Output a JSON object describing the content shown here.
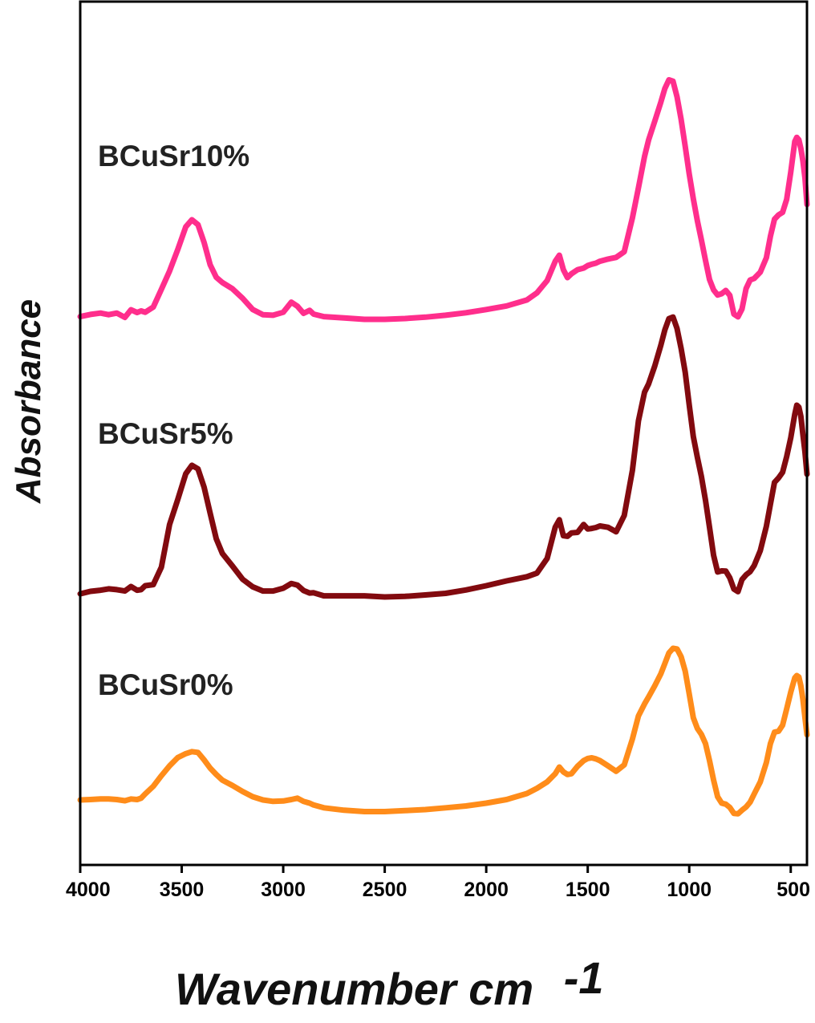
{
  "chart_data": {
    "type": "line",
    "title": "",
    "xlabel": "Wavenumber cm",
    "xlabel_superscript": "-1",
    "ylabel": "Absorbance",
    "xlim": [
      4000,
      420
    ],
    "x_reversed": true,
    "y_ticks_shown": false,
    "grid": false,
    "x_ticks": [
      {
        "value": 4000,
        "label": "4000"
      },
      {
        "value": 3500,
        "label": "3500"
      },
      {
        "value": 3000,
        "label": "3000"
      },
      {
        "value": 2500,
        "label": "2500"
      },
      {
        "value": 2000,
        "label": "2000"
      },
      {
        "value": 1500,
        "label": "1500"
      },
      {
        "value": 1000,
        "label": "1000"
      },
      {
        "value": 500,
        "label": "500"
      }
    ],
    "series": [
      {
        "name": "BCuSr10%",
        "color": "#ff2e8c",
        "x": [
          4000,
          3950,
          3900,
          3860,
          3820,
          3780,
          3750,
          3720,
          3700,
          3680,
          3640,
          3600,
          3560,
          3520,
          3480,
          3450,
          3420,
          3390,
          3360,
          3330,
          3300,
          3250,
          3200,
          3150,
          3100,
          3050,
          3000,
          2960,
          2930,
          2900,
          2870,
          2850,
          2800,
          2700,
          2600,
          2500,
          2400,
          2300,
          2200,
          2100,
          2000,
          1900,
          1800,
          1750,
          1700,
          1660,
          1640,
          1620,
          1600,
          1580,
          1550,
          1520,
          1500,
          1480,
          1460,
          1440,
          1400,
          1360,
          1320,
          1280,
          1250,
          1220,
          1200,
          1170,
          1140,
          1120,
          1100,
          1080,
          1060,
          1040,
          1020,
          1000,
          980,
          960,
          940,
          920,
          900,
          880,
          860,
          840,
          820,
          800,
          780,
          760,
          740,
          720,
          700,
          680,
          650,
          620,
          600,
          580,
          560,
          540,
          520,
          500,
          480,
          470,
          460,
          450,
          440,
          430,
          420
        ],
        "y": [
          1.0,
          1.8,
          2.3,
          1.7,
          2.3,
          0.7,
          3.5,
          2.5,
          3.1,
          2.6,
          4.5,
          11.0,
          17.7,
          25.5,
          33.9,
          36.5,
          34.7,
          28.2,
          20.0,
          15.4,
          13.5,
          11.2,
          7.7,
          3.6,
          1.7,
          1.5,
          2.6,
          6.3,
          4.8,
          2.2,
          3.3,
          1.9,
          1.0,
          0.5,
          0.0,
          0.0,
          0.3,
          0.8,
          1.5,
          2.4,
          3.6,
          4.9,
          7.1,
          9.7,
          14.2,
          21.3,
          23.5,
          18.2,
          15.3,
          16.7,
          18.2,
          18.8,
          19.7,
          20.2,
          20.6,
          21.3,
          22.1,
          22.7,
          24.8,
          37.2,
          48.2,
          59.7,
          65.8,
          72.6,
          79.6,
          84.6,
          87.8,
          87.3,
          81.6,
          73.3,
          63.4,
          53.3,
          44.2,
          36.2,
          29.1,
          21.6,
          14.6,
          10.8,
          8.9,
          9.4,
          10.6,
          8.8,
          1.9,
          0.9,
          3.8,
          11.3,
          14.4,
          15.0,
          17.3,
          22.6,
          30.4,
          36.7,
          38.3,
          39.2,
          44.0,
          54.0,
          65.2,
          66.7,
          65.8,
          62.6,
          58.1,
          51.8,
          42.1
        ]
      },
      {
        "name": "BCuSr5%",
        "color": "#820a0f",
        "x": [
          4000,
          3950,
          3900,
          3860,
          3820,
          3780,
          3750,
          3720,
          3700,
          3680,
          3640,
          3600,
          3560,
          3520,
          3480,
          3450,
          3420,
          3390,
          3360,
          3330,
          3300,
          3250,
          3200,
          3150,
          3100,
          3050,
          3000,
          2960,
          2930,
          2900,
          2870,
          2850,
          2800,
          2700,
          2600,
          2500,
          2400,
          2300,
          2200,
          2100,
          2000,
          1900,
          1800,
          1750,
          1700,
          1660,
          1640,
          1620,
          1600,
          1580,
          1550,
          1520,
          1500,
          1480,
          1460,
          1440,
          1400,
          1360,
          1320,
          1280,
          1250,
          1220,
          1200,
          1170,
          1140,
          1120,
          1100,
          1080,
          1060,
          1040,
          1020,
          1000,
          980,
          960,
          940,
          920,
          900,
          880,
          860,
          840,
          820,
          800,
          780,
          760,
          740,
          720,
          700,
          680,
          650,
          620,
          600,
          580,
          560,
          540,
          520,
          500,
          480,
          470,
          460,
          450,
          440,
          430,
          420
        ],
        "y": [
          1.1,
          2.0,
          2.4,
          2.9,
          2.6,
          2.1,
          3.7,
          2.4,
          2.6,
          4.0,
          4.4,
          10.6,
          25.8,
          34.6,
          43.9,
          46.9,
          45.6,
          39.1,
          29.8,
          20.7,
          15.5,
          11.0,
          6.3,
          3.6,
          2.1,
          2.1,
          3.1,
          4.8,
          4.2,
          2.3,
          1.4,
          1.5,
          0.4,
          0.4,
          0.4,
          0.0,
          0.2,
          0.7,
          1.3,
          2.5,
          4.0,
          5.7,
          7.2,
          8.5,
          13.7,
          24.9,
          27.5,
          21.8,
          21.6,
          22.8,
          23.0,
          25.8,
          24.2,
          24.4,
          24.7,
          25.3,
          24.8,
          23.2,
          29.0,
          45.1,
          62.7,
          72.9,
          75.9,
          82.2,
          89.6,
          95.1,
          99.1,
          99.7,
          95.6,
          88.5,
          80.0,
          68.4,
          57.1,
          49.8,
          42.9,
          34.4,
          24.8,
          14.8,
          8.9,
          9.3,
          9.2,
          6.8,
          2.8,
          1.9,
          6.2,
          7.9,
          9.0,
          11.2,
          16.5,
          25.2,
          33.0,
          40.8,
          42.4,
          44.4,
          50.0,
          56.7,
          65.1,
          68.3,
          67.6,
          64.3,
          57.9,
          51.6,
          43.7
        ]
      },
      {
        "name": "BCuSr0%",
        "color": "#ff8c1a",
        "x": [
          4000,
          3950,
          3900,
          3860,
          3820,
          3780,
          3750,
          3720,
          3700,
          3680,
          3640,
          3600,
          3560,
          3520,
          3480,
          3450,
          3420,
          3390,
          3360,
          3330,
          3300,
          3250,
          3200,
          3150,
          3100,
          3050,
          3000,
          2960,
          2930,
          2900,
          2870,
          2850,
          2800,
          2700,
          2600,
          2500,
          2400,
          2300,
          2200,
          2100,
          2000,
          1900,
          1800,
          1750,
          1700,
          1660,
          1640,
          1620,
          1600,
          1580,
          1550,
          1520,
          1500,
          1480,
          1460,
          1440,
          1400,
          1360,
          1320,
          1280,
          1250,
          1220,
          1200,
          1170,
          1140,
          1120,
          1100,
          1080,
          1060,
          1040,
          1020,
          1000,
          980,
          960,
          940,
          920,
          900,
          880,
          860,
          840,
          820,
          800,
          780,
          760,
          740,
          720,
          700,
          680,
          650,
          620,
          600,
          580,
          560,
          540,
          520,
          500,
          480,
          470,
          460,
          450,
          440,
          430,
          420
        ],
        "y": [
          7.6,
          7.8,
          8.1,
          8.1,
          7.8,
          7.2,
          8.1,
          7.8,
          8.5,
          10.6,
          14.4,
          19.7,
          24.6,
          28.7,
          30.7,
          31.7,
          31.3,
          27.6,
          23.5,
          20.3,
          17.5,
          14.8,
          11.8,
          9.2,
          7.6,
          6.9,
          7.1,
          7.8,
          8.5,
          6.9,
          6.0,
          5.1,
          3.7,
          2.5,
          1.8,
          1.8,
          2.3,
          2.8,
          3.7,
          4.6,
          6.0,
          7.8,
          10.8,
          13.4,
          16.6,
          20.7,
          24.0,
          21.6,
          20.3,
          20.7,
          24.4,
          27.2,
          28.3,
          28.6,
          28.1,
          27.2,
          24.6,
          21.9,
          25.1,
          38.0,
          49.5,
          55.5,
          59.0,
          64.5,
          70.5,
          75.6,
          80.9,
          83.2,
          82.9,
          79.0,
          71.8,
          60.5,
          48.6,
          43.3,
          40.3,
          35.7,
          27.2,
          17.5,
          9.2,
          6.0,
          5.5,
          3.9,
          0.9,
          0.7,
          2.5,
          4.1,
          6.5,
          10.6,
          16.6,
          26.3,
          35.7,
          41.4,
          41.9,
          44.9,
          53.0,
          61.4,
          68.5,
          69.6,
          68.9,
          64.5,
          57.8,
          48.6,
          40.1
        ]
      }
    ]
  }
}
